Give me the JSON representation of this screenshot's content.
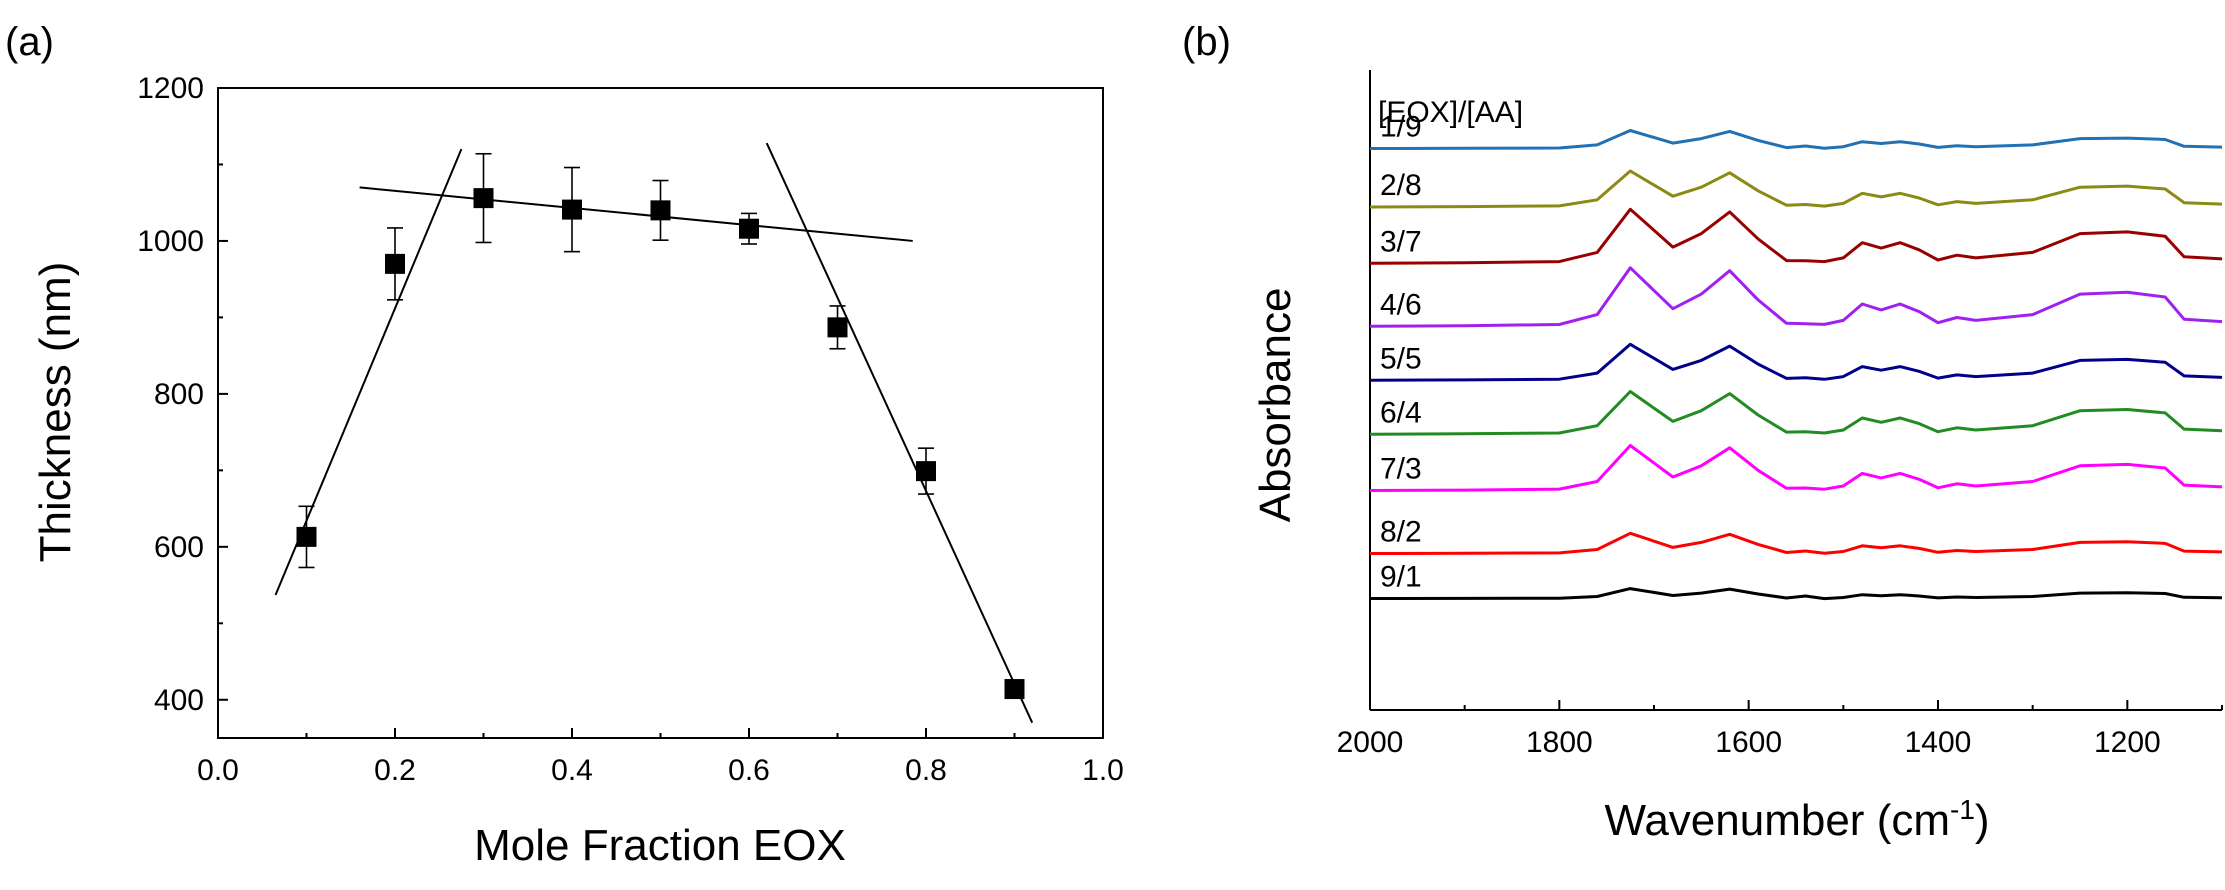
{
  "chart_data": [
    {
      "type": "scatter",
      "panel_label": "(a)",
      "xlabel": "Mole Fraction EOX",
      "ylabel": "Thickness (nm)",
      "xlim": [
        0.0,
        1.0
      ],
      "ylim": [
        350,
        1200
      ],
      "xticks": [
        0.0,
        0.2,
        0.4,
        0.6,
        0.8,
        1.0
      ],
      "xtick_labels": [
        "0.0",
        "0.2",
        "0.4",
        "0.6",
        "0.8",
        "1.0"
      ],
      "yticks": [
        400,
        600,
        800,
        1000,
        1200
      ],
      "ytick_labels": [
        "400",
        "600",
        "800",
        "1000",
        "1200"
      ],
      "grid": false,
      "marker": "square",
      "x": [
        0.1,
        0.2,
        0.3,
        0.4,
        0.5,
        0.6,
        0.7,
        0.8,
        0.9
      ],
      "y": [
        613,
        970,
        1056,
        1041,
        1040,
        1016,
        887,
        699,
        414
      ],
      "yerr": [
        40,
        47,
        58,
        55,
        39,
        20,
        28,
        30,
        0
      ],
      "fit_lines": [
        {
          "name": "rising",
          "x": [
            0.065,
            0.275
          ],
          "y": [
            537,
            1120
          ]
        },
        {
          "name": "plateau",
          "x": [
            0.16,
            0.785
          ],
          "y": [
            1070,
            1000
          ]
        },
        {
          "name": "falling",
          "x": [
            0.62,
            0.92
          ],
          "y": [
            1128,
            370
          ]
        }
      ]
    },
    {
      "type": "line",
      "panel_label": "(b)",
      "xlabel": "Wavenumber (cm",
      "xlabel_sup": "-1",
      "xlabel_end": ")",
      "ylabel": "Absorbance",
      "xlim": [
        2000,
        1100
      ],
      "xticks": [
        2000,
        1800,
        1600,
        1400,
        1200
      ],
      "xtick_labels": [
        "2000",
        "1800",
        "1600",
        "1400",
        "1200"
      ],
      "legend_title": "[EOX]/[AA]",
      "grid": false,
      "x": [
        2000,
        1900,
        1800,
        1760,
        1725,
        1680,
        1650,
        1620,
        1590,
        1560,
        1540,
        1520,
        1500,
        1480,
        1460,
        1440,
        1420,
        1400,
        1380,
        1360,
        1300,
        1250,
        1200,
        1160,
        1140,
        1100
      ],
      "series": [
        {
          "name": "1/9",
          "color": "#2271b3",
          "baseline": 1.3,
          "amp": 0.4
        },
        {
          "name": "2/8",
          "color": "#8a8a14",
          "baseline": 2.6,
          "amp": 0.8
        },
        {
          "name": "3/7",
          "color": "#990000",
          "baseline": 3.85,
          "amp": 1.2
        },
        {
          "name": "4/6",
          "color": "#a020f0",
          "baseline": 5.25,
          "amp": 1.3
        },
        {
          "name": "5/5",
          "color": "#00008b",
          "baseline": 6.45,
          "amp": 0.8
        },
        {
          "name": "6/4",
          "color": "#228b22",
          "baseline": 7.65,
          "amp": 0.95
        },
        {
          "name": "7/3",
          "color": "#ff00ff",
          "baseline": 8.9,
          "amp": 1.0
        },
        {
          "name": "8/2",
          "color": "#ff0000",
          "baseline": 10.3,
          "amp": 0.45
        },
        {
          "name": "9/1",
          "color": "#000000",
          "baseline": 11.3,
          "amp": 0.22
        }
      ],
      "profile": [
        0.0,
        0.01,
        0.03,
        0.2,
        1.0,
        0.3,
        0.55,
        0.95,
        0.45,
        0.05,
        0.0,
        0.04,
        0.1,
        0.38,
        0.28,
        0.38,
        0.25,
        0.06,
        0.15,
        0.1,
        0.2,
        0.55,
        0.58,
        0.5,
        0.12,
        0.08
      ]
    }
  ]
}
